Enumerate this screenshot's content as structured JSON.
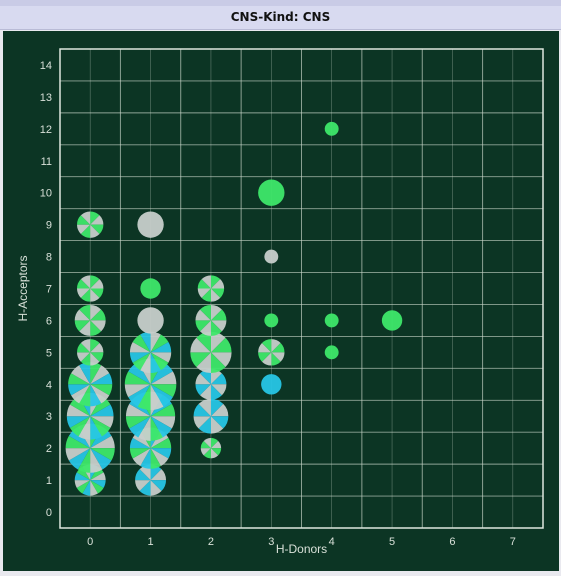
{
  "panel": {
    "title": "CNS-Kind: CNS"
  },
  "chart_data": {
    "type": "scatter",
    "title": "CNS-Kind: CNS",
    "xlabel": "H-Donors",
    "ylabel": "H-Acceptors",
    "xlim": [
      -0.5,
      7.5
    ],
    "ylim": [
      -0.5,
      14.5
    ],
    "x_ticks": [
      0,
      1,
      2,
      3,
      4,
      5,
      6,
      7
    ],
    "y_ticks": [
      0,
      1,
      2,
      3,
      4,
      5,
      6,
      7,
      8,
      9,
      10,
      11,
      12,
      13,
      14
    ],
    "grid": true,
    "colors": {
      "background": "#0c3524",
      "grid": "#c9d6c9",
      "frame": "#dfe8df",
      "tick_text": "#d8e0d8",
      "marker_green": "#3ee86a",
      "marker_cyan": "#27c6e6",
      "marker_gray": "#c7cfcb"
    },
    "points": [
      {
        "x": 0,
        "y": 1,
        "size": 3,
        "mix": [
          "cyan",
          "green",
          "gray"
        ]
      },
      {
        "x": 0,
        "y": 2,
        "size": 9,
        "mix": [
          "green",
          "cyan",
          "gray"
        ]
      },
      {
        "x": 0,
        "y": 3,
        "size": 8,
        "mix": [
          "gray",
          "green",
          "cyan"
        ]
      },
      {
        "x": 0,
        "y": 4,
        "size": 7,
        "mix": [
          "green",
          "gray",
          "cyan"
        ]
      },
      {
        "x": 0,
        "y": 5,
        "size": 2,
        "mix": [
          "green",
          "gray"
        ]
      },
      {
        "x": 0,
        "y": 6,
        "size": 3,
        "mix": [
          "gray",
          "green"
        ]
      },
      {
        "x": 0,
        "y": 7,
        "size": 2,
        "mix": [
          "green",
          "gray"
        ]
      },
      {
        "x": 0,
        "y": 9,
        "size": 2,
        "mix": [
          "green",
          "gray"
        ]
      },
      {
        "x": 1,
        "y": 1,
        "size": 3,
        "mix": [
          "cyan",
          "gray"
        ]
      },
      {
        "x": 1,
        "y": 2,
        "size": 6,
        "mix": [
          "cyan",
          "gray",
          "green"
        ]
      },
      {
        "x": 1,
        "y": 3,
        "size": 9,
        "mix": [
          "gray",
          "cyan",
          "green"
        ]
      },
      {
        "x": 1,
        "y": 4,
        "size": 10,
        "mix": [
          "green",
          "cyan",
          "gray"
        ]
      },
      {
        "x": 1,
        "y": 5,
        "size": 6,
        "mix": [
          "gray",
          "green",
          "cyan"
        ]
      },
      {
        "x": 1,
        "y": 6,
        "size": 2,
        "mix": [
          "gray"
        ]
      },
      {
        "x": 1,
        "y": 7,
        "size": 1,
        "mix": [
          "green"
        ]
      },
      {
        "x": 1,
        "y": 9,
        "size": 2,
        "mix": [
          "gray"
        ]
      },
      {
        "x": 2,
        "y": 2,
        "size": 1,
        "mix": [
          "green",
          "gray"
        ]
      },
      {
        "x": 2,
        "y": 3,
        "size": 4,
        "mix": [
          "cyan",
          "gray"
        ]
      },
      {
        "x": 2,
        "y": 4,
        "size": 3,
        "mix": [
          "gray",
          "cyan"
        ]
      },
      {
        "x": 2,
        "y": 5,
        "size": 6,
        "mix": [
          "gray",
          "green"
        ]
      },
      {
        "x": 2,
        "y": 6,
        "size": 3,
        "mix": [
          "gray",
          "green"
        ]
      },
      {
        "x": 2,
        "y": 7,
        "size": 2,
        "mix": [
          "green",
          "gray"
        ]
      },
      {
        "x": 3,
        "y": 4,
        "size": 1,
        "mix": [
          "cyan"
        ]
      },
      {
        "x": 3,
        "y": 5,
        "size": 2,
        "mix": [
          "gray",
          "green"
        ]
      },
      {
        "x": 3,
        "y": 6,
        "size": 0.3,
        "mix": [
          "green"
        ]
      },
      {
        "x": 3,
        "y": 8,
        "size": 0.3,
        "mix": [
          "gray"
        ]
      },
      {
        "x": 3,
        "y": 10,
        "size": 2,
        "mix": [
          "green"
        ]
      },
      {
        "x": 4,
        "y": 5,
        "size": 0.3,
        "mix": [
          "green"
        ]
      },
      {
        "x": 4,
        "y": 6,
        "size": 0.3,
        "mix": [
          "green"
        ]
      },
      {
        "x": 4,
        "y": 12,
        "size": 0.3,
        "mix": [
          "green"
        ]
      },
      {
        "x": 5,
        "y": 6,
        "size": 1,
        "mix": [
          "green"
        ]
      }
    ]
  }
}
